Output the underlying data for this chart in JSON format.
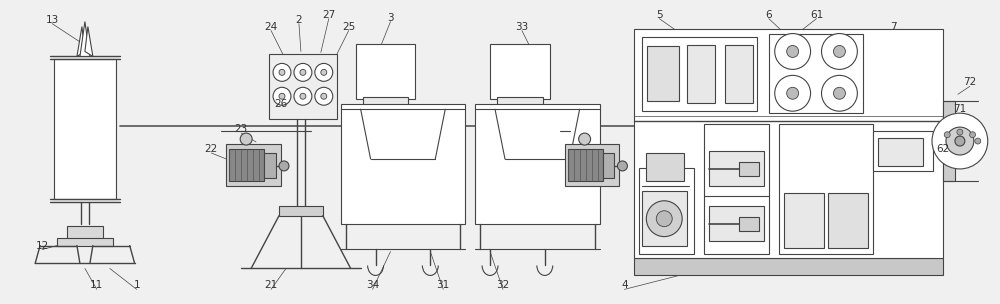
{
  "bg_color": "#f0f0f0",
  "line_color": "#444444",
  "lw": 0.8,
  "fig_width": 10.0,
  "fig_height": 3.04
}
